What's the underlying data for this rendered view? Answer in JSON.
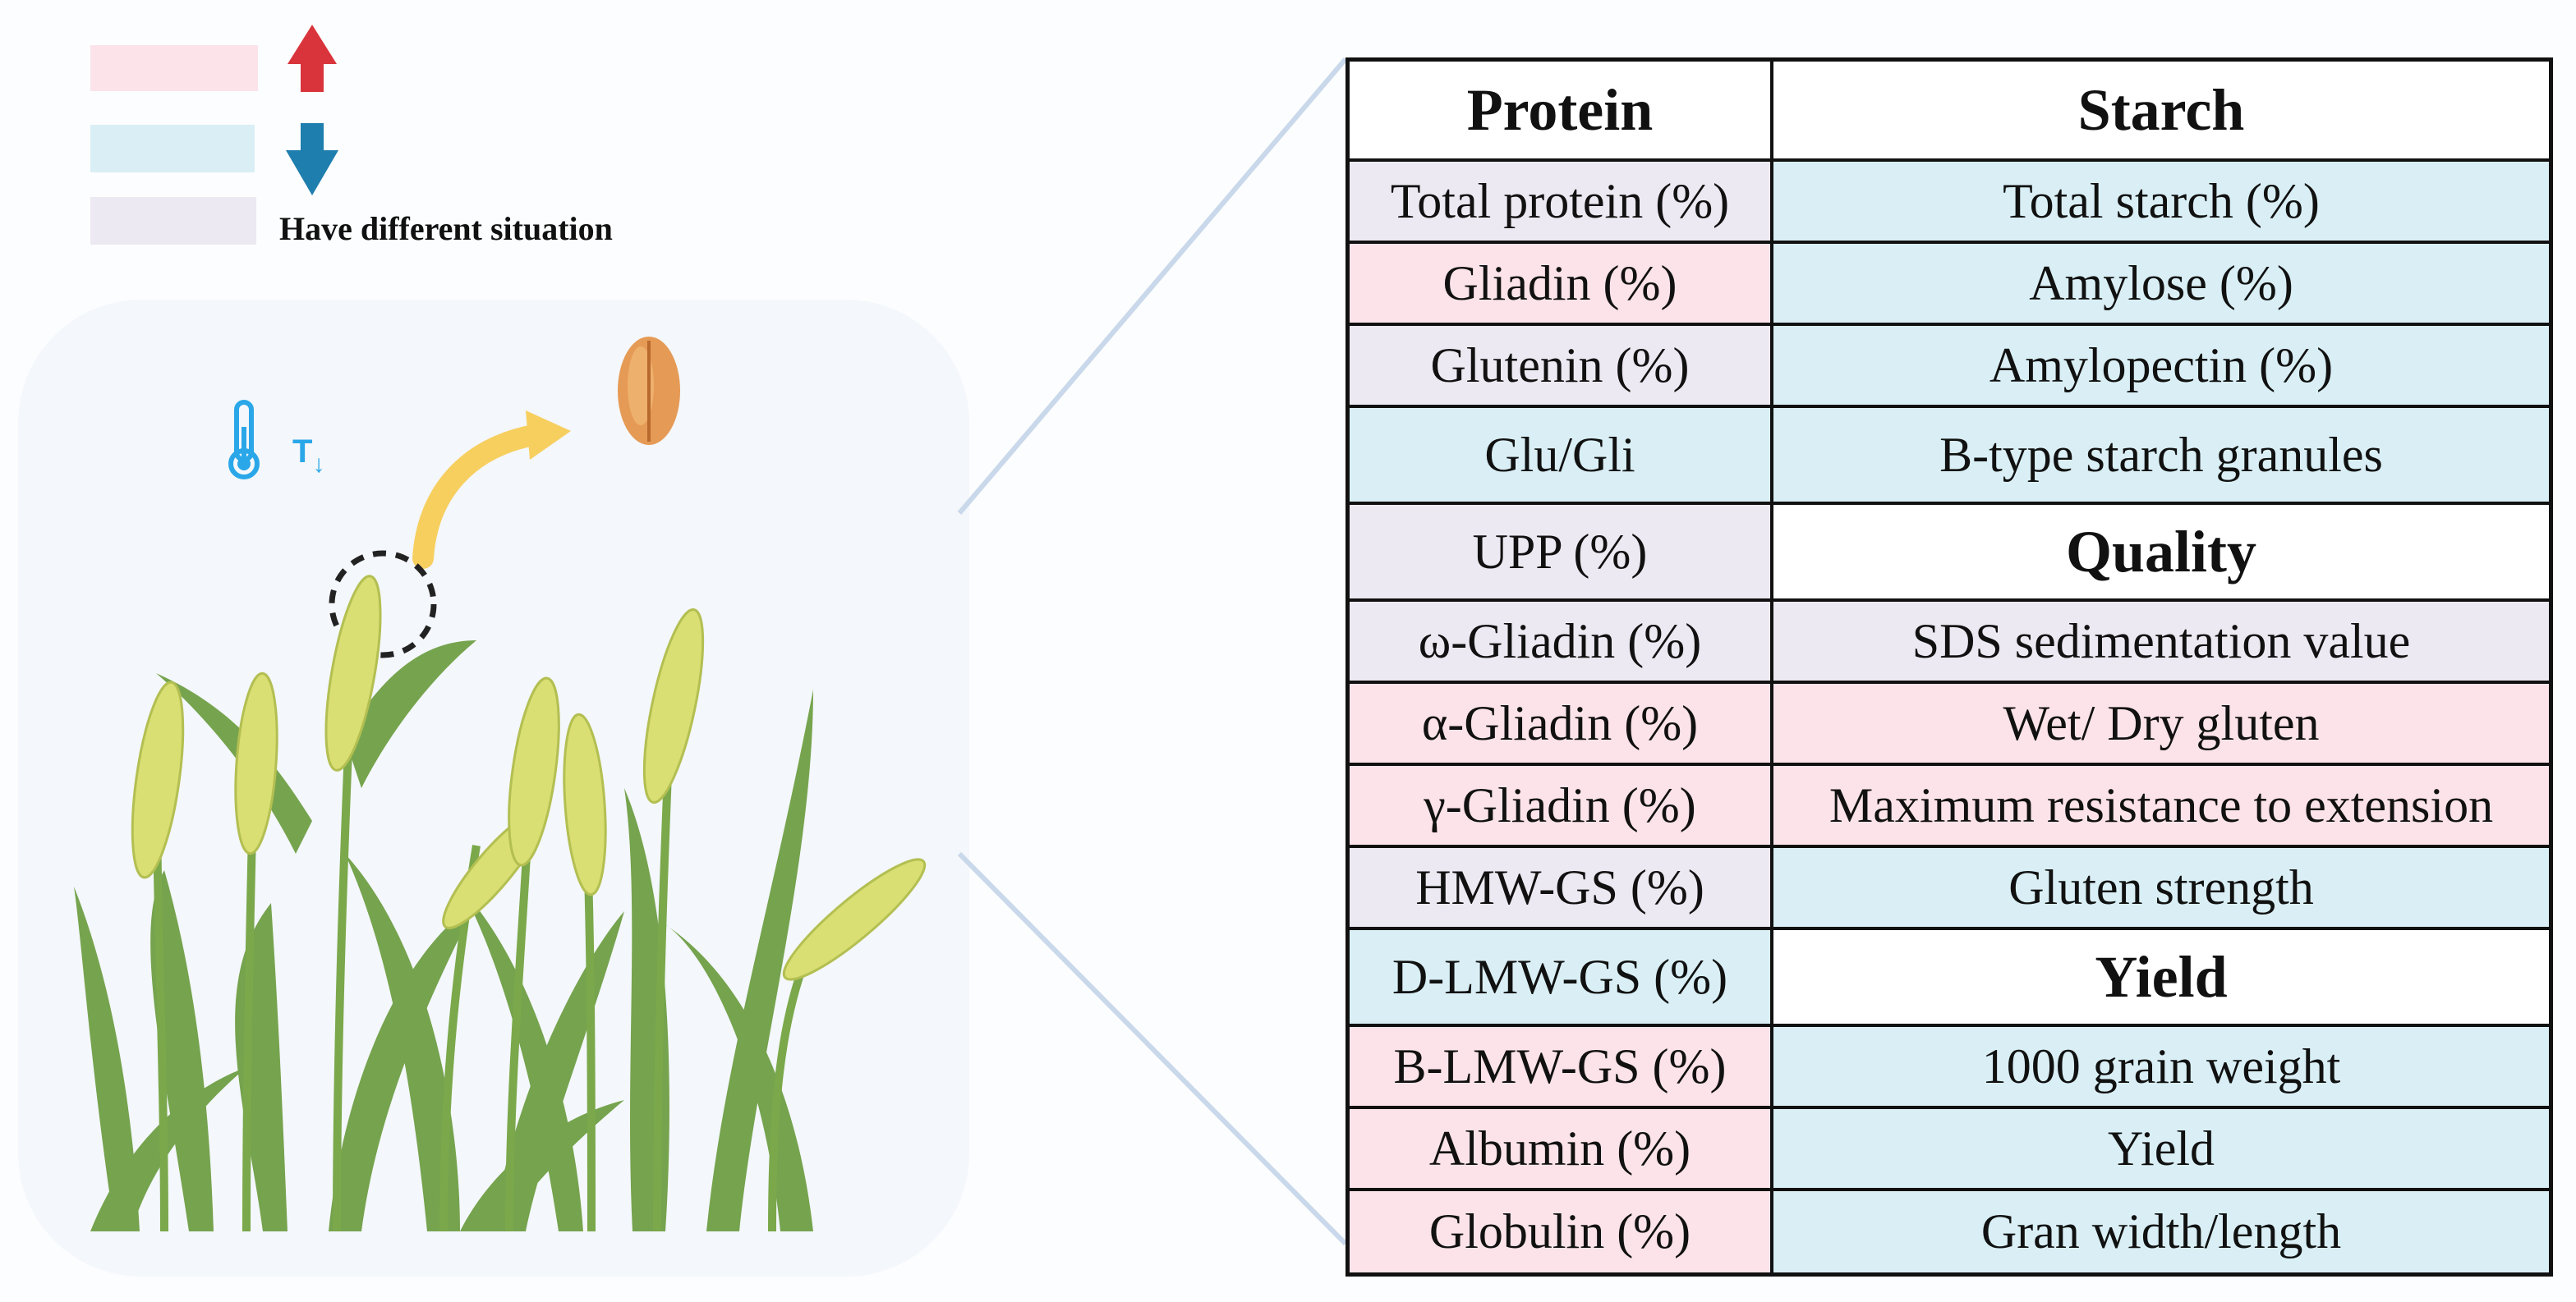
{
  "legend": {
    "items": [
      {
        "color": "#fbe3e9",
        "arrow": "up-arrow-icon",
        "arrow_color": "#d9343b"
      },
      {
        "color": "#d9eff5",
        "arrow": "down-arrow-icon",
        "arrow_color": "#1e7eae"
      },
      {
        "color": "#ede9f2",
        "label": "Have different situation"
      }
    ]
  },
  "scene": {
    "temperature_label": "T",
    "temperature_arrow": "↓",
    "icons": [
      "thermometer-icon",
      "wheat-grain-icon",
      "curved-arrow-icon",
      "wheat-plants"
    ]
  },
  "table": {
    "headers": {
      "protein": "Protein",
      "starch": "Starch"
    },
    "rows": [
      {
        "left": "Total protein (%)",
        "left_color": "grey",
        "right": "Total starch (%)",
        "right_color": "blue"
      },
      {
        "left": "Gliadin (%)",
        "left_color": "pink",
        "right": "Amylose (%)",
        "right_color": "blue"
      },
      {
        "left": "Glutenin (%)",
        "left_color": "grey",
        "right": "Amylopectin (%)",
        "right_color": "blue"
      },
      {
        "left": "Glu/Gli",
        "left_color": "blue",
        "right": "B-type starch granules",
        "right_color": "blue"
      },
      {
        "left": "UPP (%)",
        "left_color": "grey",
        "right": "Quality",
        "right_color": "white",
        "right_head": true
      },
      {
        "left": "ω-Gliadin (%)",
        "left_color": "grey",
        "right": "SDS sedimentation value",
        "right_color": "grey"
      },
      {
        "left": "α-Gliadin (%)",
        "left_color": "pink",
        "right": "Wet/ Dry  gluten",
        "right_color": "pink"
      },
      {
        "left": "γ-Gliadin (%)",
        "left_color": "pink",
        "right": "Maximum resistance to extension",
        "right_color": "pink"
      },
      {
        "left": "HMW-GS (%)",
        "left_color": "grey",
        "right": "Gluten strength",
        "right_color": "blue"
      },
      {
        "left": "D-LMW-GS (%)",
        "left_color": "blue",
        "right": "Yield",
        "right_color": "white",
        "right_head": true
      },
      {
        "left": "B-LMW-GS (%)",
        "left_color": "pink",
        "right": "1000 grain weight",
        "right_color": "blue"
      },
      {
        "left": "Albumin (%)",
        "left_color": "pink",
        "right": "Yield",
        "right_color": "blue"
      },
      {
        "left": "Globulin (%)",
        "left_color": "pink",
        "right": "Gran width/length",
        "right_color": "blue"
      }
    ]
  }
}
